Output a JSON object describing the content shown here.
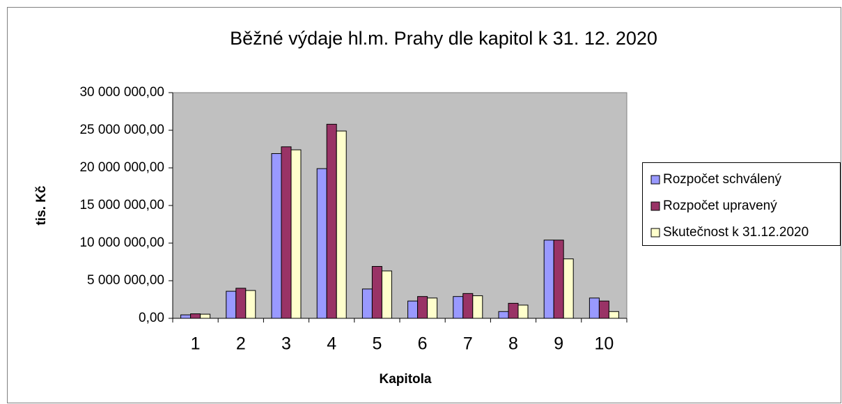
{
  "chart_data": {
    "type": "bar",
    "title": "Běžné výdaje hl.m. Prahy dle kapitol k 31. 12. 2020",
    "x_label": "Kapitola",
    "y_label": "tis. Kč",
    "categories": [
      "1",
      "2",
      "3",
      "4",
      "5",
      "6",
      "7",
      "8",
      "9",
      "10"
    ],
    "series": [
      {
        "name": "Rozpočet schválený",
        "color": "#9999ff",
        "values": [
          460000,
          3600000,
          21900000,
          19900000,
          3900000,
          2300000,
          2900000,
          900000,
          10400000,
          2700000
        ]
      },
      {
        "name": "Rozpočet upravený",
        "color": "#993366",
        "values": [
          600000,
          4000000,
          22800000,
          25800000,
          6900000,
          2900000,
          3300000,
          2000000,
          10400000,
          2300000
        ]
      },
      {
        "name": "Skutečnost k 31.12.2020",
        "color": "#ffffcc",
        "values": [
          550000,
          3700000,
          22400000,
          24900000,
          6300000,
          2700000,
          3000000,
          1760000,
          7900000,
          900000
        ]
      }
    ],
    "ylim": [
      0,
      30000000
    ],
    "yticks": [
      {
        "value": 0,
        "label": "0,00"
      },
      {
        "value": 5000000,
        "label": "5 000 000,00"
      },
      {
        "value": 10000000,
        "label": "10 000 000,00"
      },
      {
        "value": 15000000,
        "label": "15 000 000,00"
      },
      {
        "value": 20000000,
        "label": "20 000 000,00"
      },
      {
        "value": 25000000,
        "label": "25 000 000,00"
      },
      {
        "value": 30000000,
        "label": "30 000 000,00"
      }
    ],
    "legend": "right"
  }
}
